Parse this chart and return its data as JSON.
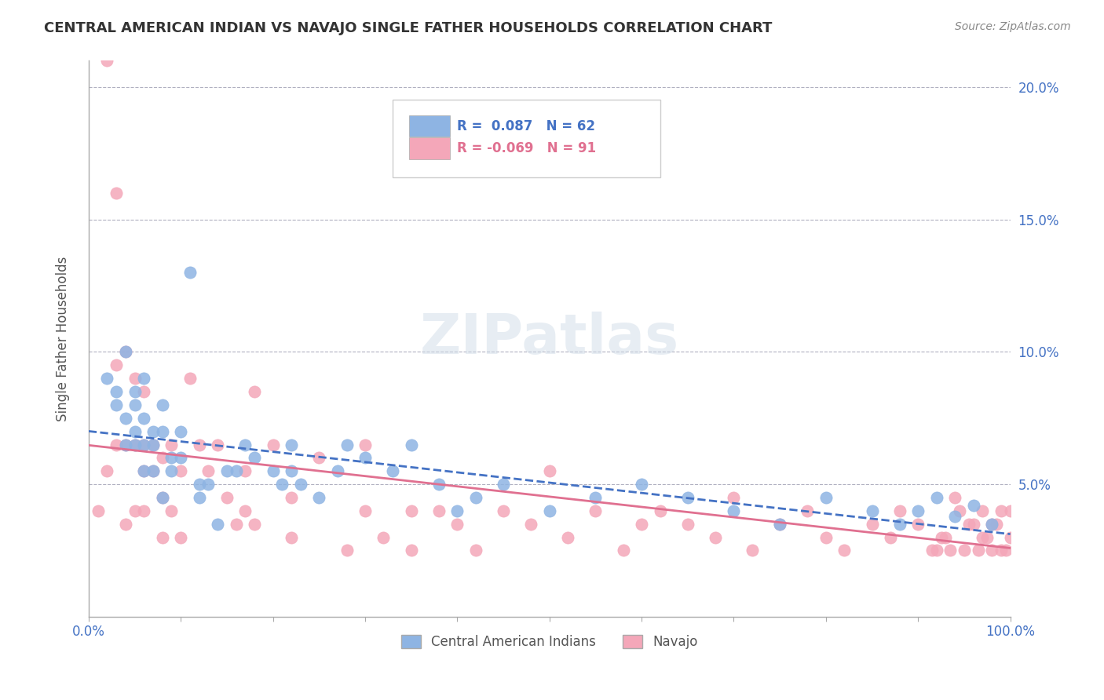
{
  "title": "CENTRAL AMERICAN INDIAN VS NAVAJO SINGLE FATHER HOUSEHOLDS CORRELATION CHART",
  "source": "Source: ZipAtlas.com",
  "xlabel": "",
  "ylabel": "Single Father Households",
  "xlim": [
    0,
    1.0
  ],
  "ylim": [
    0,
    0.21
  ],
  "yticks": [
    0,
    0.05,
    0.1,
    0.15,
    0.2
  ],
  "ytick_labels": [
    "",
    "5.0%",
    "10.0%",
    "15.0%",
    "20.0%"
  ],
  "xtick_labels": [
    "0.0%",
    "",
    "",
    "",
    "",
    "",
    "",
    "",
    "",
    "",
    "100.0%"
  ],
  "blue_R": 0.087,
  "blue_N": 62,
  "pink_R": -0.069,
  "pink_N": 91,
  "blue_color": "#8eb4e3",
  "pink_color": "#f4a7b9",
  "blue_line_color": "#4472c4",
  "pink_line_color": "#e07090",
  "legend_blue_label": "R =  0.087   N = 62",
  "legend_pink_label": "R = -0.069   N = 91",
  "legend_blue_text_color": "#4472c4",
  "legend_pink_text_color": "#e07090",
  "watermark": "ZIPatlas",
  "blue_scatter_x": [
    0.02,
    0.03,
    0.03,
    0.04,
    0.04,
    0.04,
    0.05,
    0.05,
    0.05,
    0.05,
    0.06,
    0.06,
    0.06,
    0.06,
    0.07,
    0.07,
    0.07,
    0.08,
    0.08,
    0.08,
    0.09,
    0.09,
    0.1,
    0.1,
    0.11,
    0.12,
    0.12,
    0.13,
    0.14,
    0.15,
    0.16,
    0.17,
    0.18,
    0.2,
    0.21,
    0.22,
    0.22,
    0.23,
    0.25,
    0.27,
    0.28,
    0.3,
    0.33,
    0.35,
    0.38,
    0.4,
    0.42,
    0.45,
    0.5,
    0.55,
    0.6,
    0.65,
    0.7,
    0.75,
    0.8,
    0.85,
    0.88,
    0.9,
    0.92,
    0.94,
    0.96,
    0.98
  ],
  "blue_scatter_y": [
    0.09,
    0.085,
    0.08,
    0.1,
    0.075,
    0.065,
    0.085,
    0.08,
    0.07,
    0.065,
    0.09,
    0.075,
    0.065,
    0.055,
    0.07,
    0.065,
    0.055,
    0.08,
    0.07,
    0.045,
    0.06,
    0.055,
    0.07,
    0.06,
    0.13,
    0.05,
    0.045,
    0.05,
    0.035,
    0.055,
    0.055,
    0.065,
    0.06,
    0.055,
    0.05,
    0.055,
    0.065,
    0.05,
    0.045,
    0.055,
    0.065,
    0.06,
    0.055,
    0.065,
    0.05,
    0.04,
    0.045,
    0.05,
    0.04,
    0.045,
    0.05,
    0.045,
    0.04,
    0.035,
    0.045,
    0.04,
    0.035,
    0.04,
    0.045,
    0.038,
    0.042,
    0.035
  ],
  "pink_scatter_x": [
    0.01,
    0.02,
    0.02,
    0.03,
    0.03,
    0.03,
    0.04,
    0.04,
    0.04,
    0.05,
    0.05,
    0.05,
    0.06,
    0.06,
    0.06,
    0.06,
    0.07,
    0.07,
    0.08,
    0.08,
    0.08,
    0.09,
    0.09,
    0.1,
    0.1,
    0.11,
    0.12,
    0.13,
    0.14,
    0.15,
    0.16,
    0.17,
    0.17,
    0.18,
    0.18,
    0.2,
    0.22,
    0.22,
    0.25,
    0.28,
    0.3,
    0.3,
    0.32,
    0.35,
    0.35,
    0.38,
    0.4,
    0.42,
    0.45,
    0.48,
    0.5,
    0.52,
    0.55,
    0.58,
    0.6,
    0.62,
    0.65,
    0.68,
    0.7,
    0.72,
    0.75,
    0.78,
    0.8,
    0.82,
    0.85,
    0.87,
    0.88,
    0.9,
    0.92,
    0.93,
    0.94,
    0.95,
    0.96,
    0.97,
    0.97,
    0.98,
    0.98,
    0.99,
    0.99,
    1.0,
    1.0,
    0.995,
    0.985,
    0.975,
    0.965,
    0.955,
    0.945,
    0.935,
    0.925,
    0.915
  ],
  "pink_scatter_y": [
    0.04,
    0.21,
    0.055,
    0.16,
    0.095,
    0.065,
    0.1,
    0.065,
    0.035,
    0.09,
    0.065,
    0.04,
    0.085,
    0.065,
    0.055,
    0.04,
    0.065,
    0.055,
    0.06,
    0.045,
    0.03,
    0.065,
    0.04,
    0.055,
    0.03,
    0.09,
    0.065,
    0.055,
    0.065,
    0.045,
    0.035,
    0.055,
    0.04,
    0.085,
    0.035,
    0.065,
    0.045,
    0.03,
    0.06,
    0.025,
    0.065,
    0.04,
    0.03,
    0.04,
    0.025,
    0.04,
    0.035,
    0.025,
    0.04,
    0.035,
    0.055,
    0.03,
    0.04,
    0.025,
    0.035,
    0.04,
    0.035,
    0.03,
    0.045,
    0.025,
    0.035,
    0.04,
    0.03,
    0.025,
    0.035,
    0.03,
    0.04,
    0.035,
    0.025,
    0.03,
    0.045,
    0.025,
    0.035,
    0.03,
    0.04,
    0.025,
    0.035,
    0.04,
    0.025,
    0.03,
    0.04,
    0.025,
    0.035,
    0.03,
    0.025,
    0.035,
    0.04,
    0.025,
    0.03,
    0.025
  ]
}
